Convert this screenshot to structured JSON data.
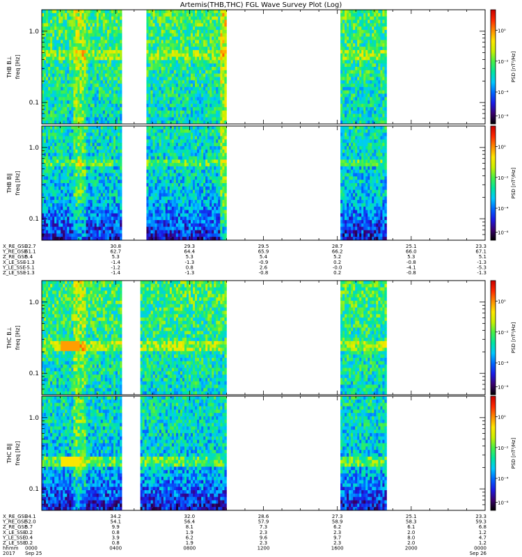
{
  "title": "Artemis(THB,THC) FGL Wave Survey Plot (Log)",
  "colorbar": {
    "label": "PSD [nT²/Hz]",
    "ticks": [
      "10⁰",
      "10⁻²",
      "10⁻⁴",
      "10⁻⁶"
    ],
    "stops": [
      "#000000",
      "#3a006e",
      "#1a1ae6",
      "#0066ff",
      "#00c8ff",
      "#00e6a0",
      "#46f046",
      "#c8f000",
      "#ffe600",
      "#ff8c00",
      "#ff2800",
      "#c80000"
    ]
  },
  "chart_data": [
    {
      "type": "heatmap",
      "panel": "THB B⊥",
      "ylabel_probe": "THB B⊥",
      "ylabel_unit": "freq [Hz]",
      "yscale": "log",
      "yticks": [
        "1.0",
        "0.1"
      ],
      "ylim": [
        0.05,
        2.0
      ],
      "xlim": [
        "0000",
        "0000"
      ],
      "data_intervals_hhmm": [
        [
          "0000",
          "0420"
        ],
        [
          "0540",
          "1000"
        ],
        [
          "1610",
          "1840"
        ]
      ],
      "bright_band_hz": 0.5,
      "bright_band_note": ""
    },
    {
      "type": "heatmap",
      "panel": "THB B∥",
      "ylabel_probe": "THB B∥",
      "ylabel_unit": "freq [Hz]",
      "yscale": "log",
      "yticks": [
        "1.0",
        "0.1"
      ],
      "ylim": [
        0.05,
        2.0
      ],
      "data_intervals_hhmm": [
        [
          "0000",
          "0420"
        ],
        [
          "0540",
          "1000"
        ],
        [
          "1610",
          "1840"
        ]
      ]
    },
    {
      "type": "heatmap",
      "panel": "THC B⊥",
      "ylabel_probe": "THC B⊥",
      "ylabel_unit": "freq [Hz]",
      "yscale": "log",
      "yticks": [
        "1.0",
        "0.1"
      ],
      "ylim": [
        0.05,
        2.0
      ],
      "data_intervals_hhmm": [
        [
          "0000",
          "0420"
        ],
        [
          "0520",
          "1000"
        ],
        [
          "1610",
          "1840"
        ]
      ],
      "peak_band_hz": 0.25,
      "peak_time_hhmm": [
        "0100",
        "0200"
      ]
    },
    {
      "type": "heatmap",
      "panel": "THC B∥",
      "ylabel_probe": "THC B∥",
      "ylabel_unit": "freq [Hz]",
      "yscale": "log",
      "yticks": [
        "1.0",
        "0.1"
      ],
      "ylim": [
        0.05,
        2.0
      ],
      "data_intervals_hhmm": [
        [
          "0000",
          "0420"
        ],
        [
          "0520",
          "1000"
        ],
        [
          "1610",
          "1840"
        ]
      ],
      "peak_band_hz": 0.25,
      "peak_time_hhmm": [
        "0100",
        "0200"
      ]
    }
  ],
  "thb_ephemeris": {
    "labels": [
      "X_RE_GSE",
      "Y_RE_GSE",
      "Z_RE_GSE",
      "X_LE_SSE",
      "Y_LE_SSE",
      "Z_LE_SSE"
    ],
    "columns": [
      [
        "32.7",
        "61.1",
        "5.4",
        "-1.3",
        "-5.1",
        "-1.3"
      ],
      [
        "30.8",
        "62.7",
        "5.3",
        "-1.4",
        "-1.2",
        "-1.4"
      ],
      [
        "29.3",
        "64.4",
        "5.3",
        "-1.3",
        "0.8",
        "-1.3"
      ],
      [
        "29.5",
        "65.9",
        "5.4",
        "-0.9",
        "2.6",
        "-0.8"
      ],
      [
        "28.7",
        "66.2",
        "5.2",
        "0.2",
        "-0.0",
        "0.2"
      ],
      [
        "25.1",
        "66.0",
        "5.3",
        "-0.8",
        "-4.1",
        "-0.8"
      ],
      [
        "23.3",
        "67.1",
        "5.1",
        "-1.3",
        "-5.3",
        "-1.3"
      ]
    ]
  },
  "thc_ephemeris": {
    "labels": [
      "X_RE_GSE",
      "Y_RE_GSE",
      "Z_RE_GSE",
      "X_LE_SSE",
      "Y_LE_SSE",
      "Z_LE_SSE"
    ],
    "extra_label": "hhmm",
    "year_label": "2017",
    "columns": [
      [
        "34.1",
        "52.0",
        "5.7",
        "0.2",
        "0.4",
        "0.2",
        "0000",
        "Sep 25"
      ],
      [
        "34.2",
        "54.1",
        "9.9",
        "0.8",
        "3.9",
        "0.8",
        "0400",
        ""
      ],
      [
        "32.0",
        "56.4",
        "8.1",
        "1.9",
        "6.2",
        "1.9",
        "0800",
        ""
      ],
      [
        "28.6",
        "57.9",
        "7.3",
        "2.3",
        "9.6",
        "2.3",
        "1200",
        ""
      ],
      [
        "27.3",
        "58.9",
        "6.2",
        "2.3",
        "9.7",
        "2.3",
        "1600",
        ""
      ],
      [
        "25.1",
        "58.3",
        "6.1",
        "2.0",
        "8.0",
        "2.0",
        "2000",
        ""
      ],
      [
        "23.3",
        "59.3",
        "6.8",
        "1.2",
        "4.7",
        "1.2",
        "0000",
        "Sep 26"
      ]
    ]
  }
}
